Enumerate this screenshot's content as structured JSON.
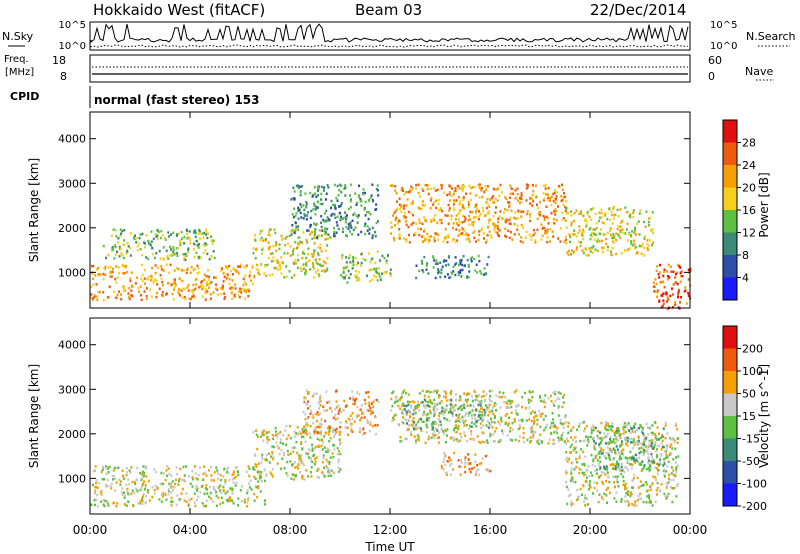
{
  "header": {
    "station": "Hokkaido West (fitACF)",
    "beam": "Beam 03",
    "date": "22/Dec/2014"
  },
  "noise_panel": {
    "left_label": "N.Sky",
    "right_label": "N.Search",
    "left_ticks": [
      "10^5",
      "10^0"
    ],
    "right_ticks": [
      "10^5",
      "10^0"
    ]
  },
  "freq_panel": {
    "left_label_1": "Freq.",
    "left_label_2": "[MHz]",
    "right_label": "Nave",
    "left_ticks": [
      "18",
      "8"
    ],
    "right_ticks": [
      "60",
      "0"
    ]
  },
  "cpid": {
    "label": "CPID",
    "value": "normal (fast stereo) 153"
  },
  "chart_data": [
    {
      "type": "heatmap",
      "panel": "power",
      "ylabel": "Slant Range [km]",
      "xlabel": "Time UT",
      "y_ticks": [
        "1000",
        "2000",
        "3000",
        "4000"
      ],
      "x_ticks": [
        "00:00",
        "04:00",
        "08:00",
        "12:00",
        "16:00",
        "20:00",
        "00:00"
      ],
      "ylim": [
        200,
        4600
      ],
      "xlim": [
        0,
        24
      ],
      "colorbar": {
        "label": "Power [dB]",
        "ticks": [
          "4",
          "8",
          "12",
          "16",
          "20",
          "24",
          "28"
        ],
        "colors": [
          "#1a1aff",
          "#2d4fa8",
          "#3c8a78",
          "#5cc040",
          "#f5d020",
          "#f5a000",
          "#f05a10",
          "#e01010"
        ]
      },
      "regions": [
        {
          "t": [
            0.0,
            6.5
          ],
          "r": [
            400,
            1200
          ],
          "level": 5
        },
        {
          "t": [
            6.5,
            9.5
          ],
          "r": [
            900,
            2000
          ],
          "level": 4
        },
        {
          "t": [
            0.5,
            5.0
          ],
          "r": [
            1300,
            2000
          ],
          "level": 3
        },
        {
          "t": [
            8.0,
            11.5
          ],
          "r": [
            1800,
            3000
          ],
          "level": 2
        },
        {
          "t": [
            12.0,
            19.0
          ],
          "r": [
            1700,
            3000
          ],
          "level": 5
        },
        {
          "t": [
            19.0,
            22.5
          ],
          "r": [
            1400,
            2500
          ],
          "level": 4
        },
        {
          "t": [
            22.5,
            24.0
          ],
          "r": [
            200,
            1200
          ],
          "level": 6
        },
        {
          "t": [
            10.0,
            12.0
          ],
          "r": [
            800,
            1500
          ],
          "level": 3
        },
        {
          "t": [
            13.0,
            16.0
          ],
          "r": [
            900,
            1400
          ],
          "level": 2
        }
      ]
    },
    {
      "type": "heatmap",
      "panel": "velocity",
      "ylabel": "Slant Range [km]",
      "xlabel": "Time UT",
      "y_ticks": [
        "1000",
        "2000",
        "3000",
        "4000"
      ],
      "x_ticks": [
        "00:00",
        "04:00",
        "08:00",
        "12:00",
        "16:00",
        "20:00",
        "00:00"
      ],
      "ylim": [
        200,
        4600
      ],
      "xlim": [
        0,
        24
      ],
      "colorbar": {
        "label": "Velocity [m s^-1]",
        "ticks": [
          "200",
          "100",
          "50",
          "15",
          "-15",
          "-50",
          "-100",
          "-200"
        ],
        "colors": [
          "#1a1aff",
          "#2d4fa8",
          "#3c8a78",
          "#5cc040",
          "#c8c8c8",
          "#f5a000",
          "#f05a10",
          "#e01010"
        ]
      },
      "regions": [
        {
          "t": [
            0.0,
            7.0
          ],
          "r": [
            400,
            1300
          ],
          "level": 4
        },
        {
          "t": [
            6.5,
            10.0
          ],
          "r": [
            1000,
            2200
          ],
          "level": 4
        },
        {
          "t": [
            8.5,
            11.5
          ],
          "r": [
            2000,
            3000
          ],
          "level": 5
        },
        {
          "t": [
            12.0,
            19.0
          ],
          "r": [
            1800,
            3000
          ],
          "level": 4
        },
        {
          "t": [
            12.5,
            16.0
          ],
          "r": [
            2100,
            2800
          ],
          "level": 3
        },
        {
          "t": [
            14.0,
            16.0
          ],
          "r": [
            1100,
            1600
          ],
          "level": 5
        },
        {
          "t": [
            19.0,
            23.5
          ],
          "r": [
            400,
            2300
          ],
          "level": 4
        },
        {
          "t": [
            20.0,
            23.0
          ],
          "r": [
            1200,
            2200
          ],
          "level": 3
        }
      ]
    }
  ]
}
